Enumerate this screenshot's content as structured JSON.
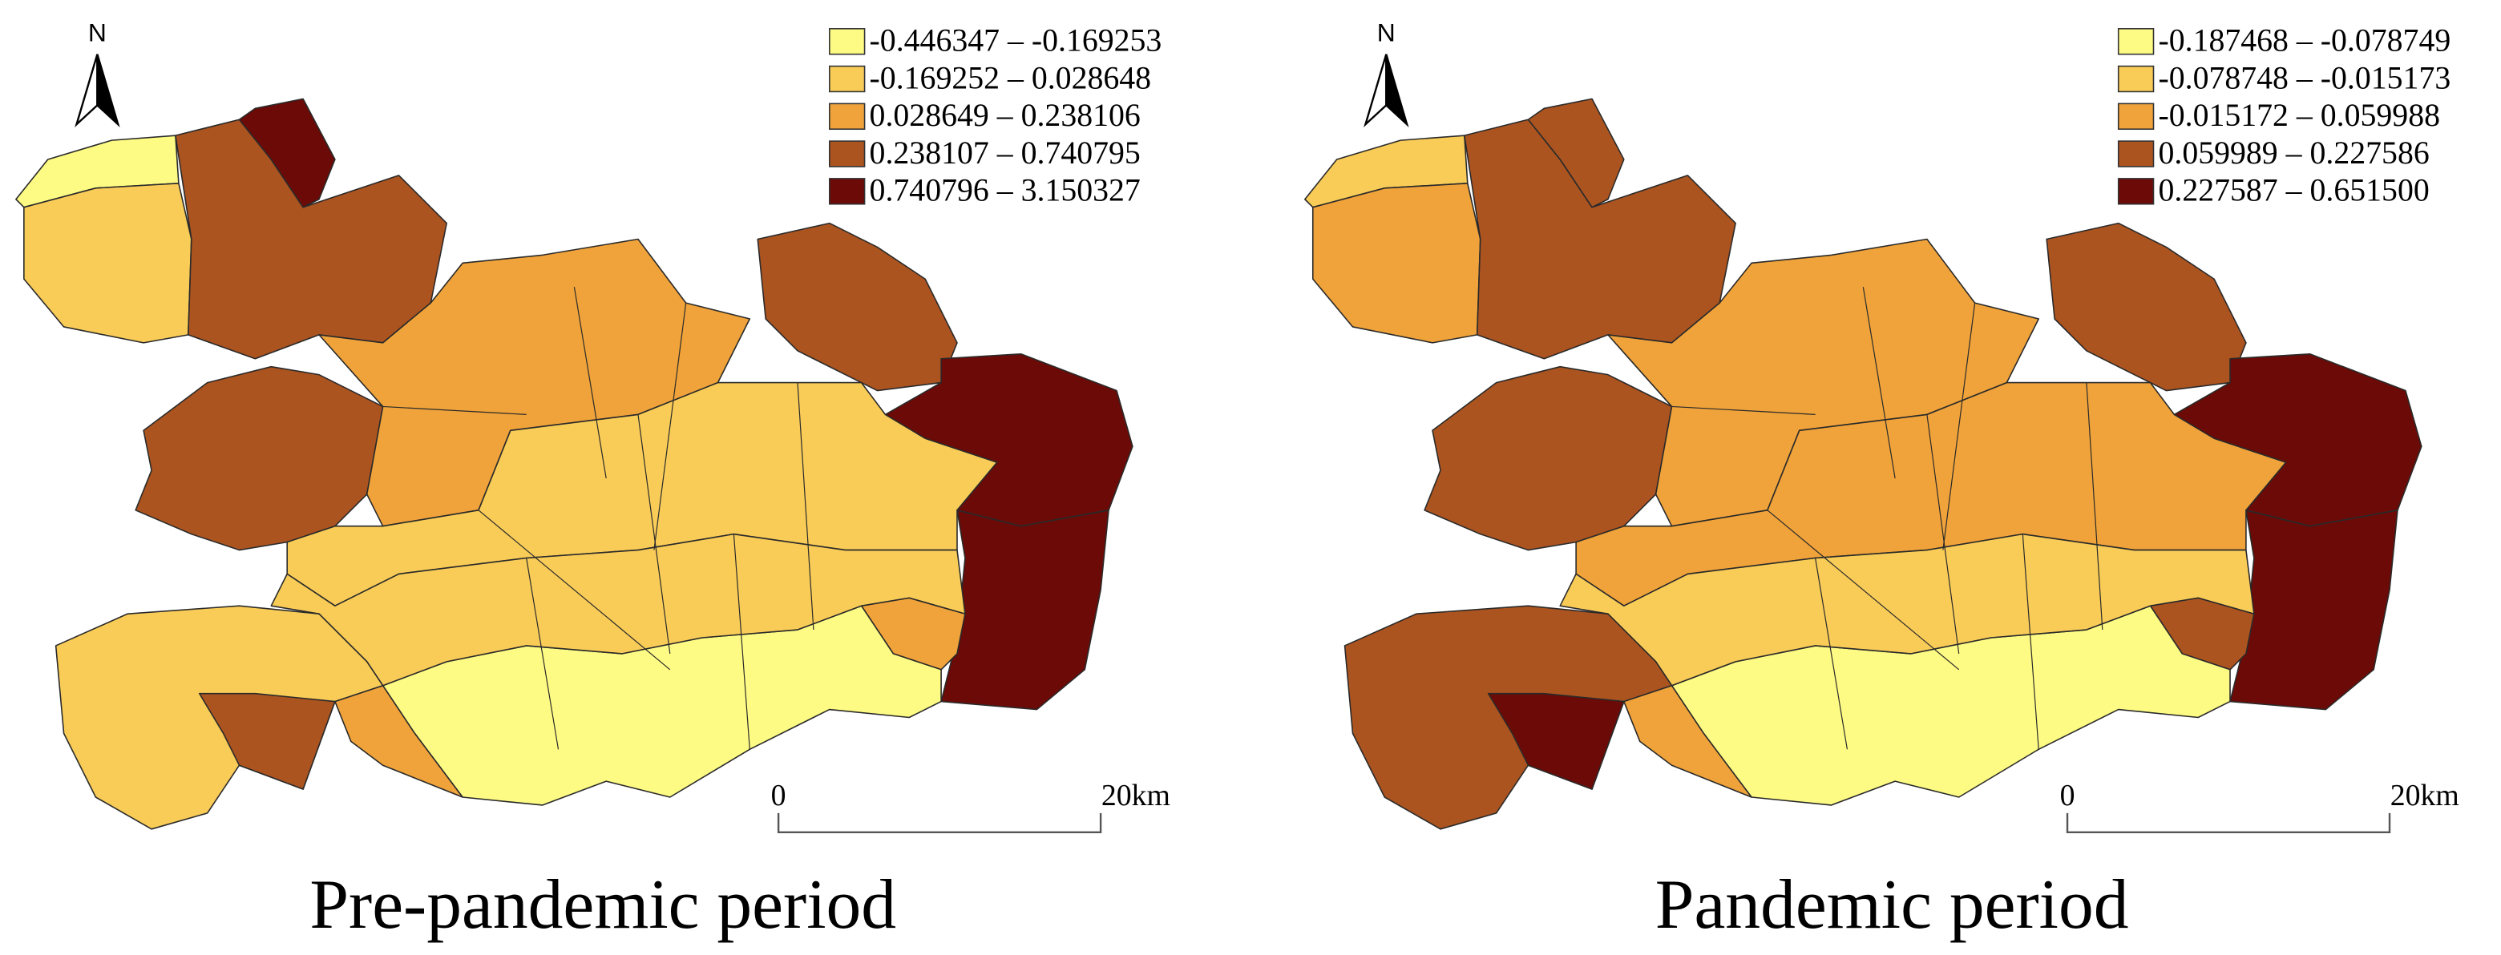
{
  "panels": [
    {
      "north": "N",
      "legend": [
        {
          "label": "-0.446347 – -0.169253",
          "color": "#fefb84"
        },
        {
          "label": "-0.169252 – 0.028648",
          "color": "#f9cc58"
        },
        {
          "label": "0.028649 – 0.238106",
          "color": "#f0a33a"
        },
        {
          "label": "0.238107 – 0.740795",
          "color": "#ab5420"
        },
        {
          "label": "0.740796 – 3.150327",
          "color": "#6b0a06"
        }
      ],
      "scale_bar": {
        "start": "0",
        "end": "20km"
      },
      "caption": "Pre-pandemic period"
    },
    {
      "north": "N",
      "legend": [
        {
          "label": "-0.187468 – -0.078749",
          "color": "#fefb84"
        },
        {
          "label": "-0.078748 – -0.015173",
          "color": "#f9cc58"
        },
        {
          "label": "-0.015172 – 0.059988",
          "color": "#f0a33a"
        },
        {
          "label": "0.059989 – 0.227586",
          "color": "#ab5420"
        },
        {
          "label": "0.227587 – 0.651500",
          "color": "#6b0a06"
        }
      ],
      "scale_bar": {
        "start": "0",
        "end": "20km"
      },
      "caption": "Pandemic period"
    }
  ]
}
